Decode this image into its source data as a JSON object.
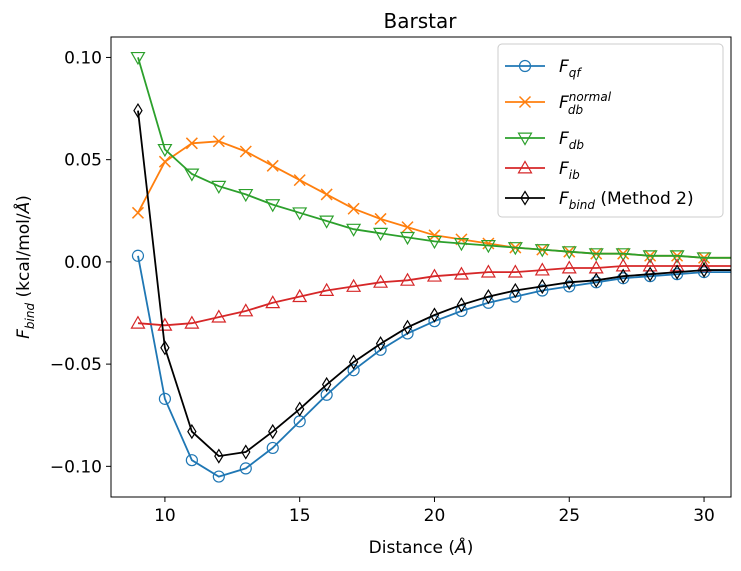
{
  "chart_data": {
    "type": "line",
    "title": "Barstar",
    "xlabel": "Distance (Å)",
    "ylabel": "F_bind (kcal/mol/Å)",
    "xlim": [
      8.0,
      31.0
    ],
    "ylim": [
      -0.115,
      0.11
    ],
    "xticks": [
      10,
      15,
      20,
      25,
      30
    ],
    "xtick_labels": [
      "10",
      "15",
      "20",
      "25",
      "30"
    ],
    "yticks": [
      -0.1,
      -0.05,
      0.0,
      0.05,
      0.1
    ],
    "ytick_labels": [
      "−0.10",
      "−0.05",
      "0.00",
      "0.05",
      "0.10"
    ],
    "grid": false,
    "legend_position": "top-right",
    "series": [
      {
        "name": "F_qf",
        "legend": {
          "main": "F",
          "sub": "qf",
          "sup": "",
          "suffix": ""
        },
        "color": "#1f77b4",
        "marker": "circle",
        "x": [
          9,
          10,
          11,
          12,
          13,
          14,
          15,
          16,
          17,
          18,
          19,
          20,
          21,
          22,
          23,
          24,
          25,
          26,
          27,
          28,
          29,
          30
        ],
        "y": [
          0.003,
          -0.067,
          -0.097,
          -0.105,
          -0.101,
          -0.091,
          -0.078,
          -0.065,
          -0.053,
          -0.043,
          -0.035,
          -0.029,
          -0.024,
          -0.02,
          -0.017,
          -0.014,
          -0.012,
          -0.01,
          -0.008,
          -0.007,
          -0.006,
          -0.005
        ]
      },
      {
        "name": "F_db^normal",
        "legend": {
          "main": "F",
          "sub": "db",
          "sup": "normal",
          "suffix": ""
        },
        "color": "#ff7f0e",
        "marker": "x",
        "x": [
          9,
          10,
          11,
          12,
          13,
          14,
          15,
          16,
          17,
          18,
          19,
          20,
          21,
          22,
          23,
          24,
          25,
          26,
          27,
          28,
          29,
          30
        ],
        "y": [
          0.024,
          0.049,
          0.058,
          0.059,
          0.054,
          0.047,
          0.04,
          0.033,
          0.026,
          0.021,
          0.017,
          0.013,
          0.011,
          0.009,
          0.007,
          0.006,
          0.005,
          0.004,
          0.004,
          0.003,
          0.003,
          0.002
        ]
      },
      {
        "name": "F_db",
        "legend": {
          "main": "F",
          "sub": "db",
          "sup": "",
          "suffix": ""
        },
        "color": "#2ca02c",
        "marker": "triangle-down",
        "x": [
          9,
          10,
          11,
          12,
          13,
          14,
          15,
          16,
          17,
          18,
          19,
          20,
          21,
          22,
          23,
          24,
          25,
          26,
          27,
          28,
          29,
          30
        ],
        "y": [
          0.1,
          0.055,
          0.043,
          0.037,
          0.033,
          0.028,
          0.024,
          0.02,
          0.016,
          0.014,
          0.012,
          0.01,
          0.009,
          0.008,
          0.007,
          0.006,
          0.005,
          0.004,
          0.004,
          0.003,
          0.003,
          0.002
        ]
      },
      {
        "name": "F_ib",
        "legend": {
          "main": "F",
          "sub": "ib",
          "sup": "",
          "suffix": ""
        },
        "color": "#d62728",
        "marker": "triangle-up",
        "x": [
          9,
          10,
          11,
          12,
          13,
          14,
          15,
          16,
          17,
          18,
          19,
          20,
          21,
          22,
          23,
          24,
          25,
          26,
          27,
          28,
          29,
          30
        ],
        "y": [
          -0.03,
          -0.031,
          -0.03,
          -0.027,
          -0.024,
          -0.02,
          -0.017,
          -0.014,
          -0.012,
          -0.01,
          -0.009,
          -0.007,
          -0.006,
          -0.005,
          -0.005,
          -0.004,
          -0.003,
          -0.003,
          -0.002,
          -0.002,
          -0.002,
          -0.002
        ]
      },
      {
        "name": "F_bind (Method 2)",
        "legend": {
          "main": "F",
          "sub": "bind",
          "sup": "",
          "suffix": " (Method 2)"
        },
        "color": "#000000",
        "marker": "diamond",
        "x": [
          9,
          10,
          11,
          12,
          13,
          14,
          15,
          16,
          17,
          18,
          19,
          20,
          21,
          22,
          23,
          24,
          25,
          26,
          27,
          28,
          29,
          30
        ],
        "y": [
          0.074,
          -0.042,
          -0.083,
          -0.095,
          -0.093,
          -0.083,
          -0.072,
          -0.06,
          -0.049,
          -0.04,
          -0.032,
          -0.026,
          -0.021,
          -0.017,
          -0.014,
          -0.012,
          -0.01,
          -0.009,
          -0.007,
          -0.006,
          -0.005,
          -0.004
        ]
      }
    ]
  }
}
